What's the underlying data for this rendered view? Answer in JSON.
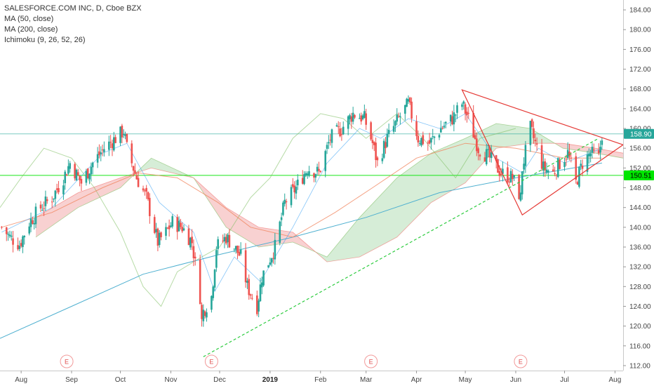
{
  "legend": {
    "title": "SALESFORCE.COM INC, D, Cboe BZX",
    "ma50": "MA (50, close)",
    "ma200": "MA (200, close)",
    "ichimoku": "Ichimoku (9, 26, 52, 26)"
  },
  "price_tags": [
    {
      "label": "158.90",
      "value": 158.9,
      "bg": "#26a69a",
      "fg": "#ffffff"
    },
    {
      "label": "150.51",
      "value": 150.51,
      "bg": "#00e600",
      "fg": "#000000"
    }
  ],
  "events": [
    {
      "label": "E",
      "date": "2018-08-29"
    },
    {
      "label": "E",
      "date": "2018-11-26"
    },
    {
      "label": "E",
      "date": "2019-03-04"
    },
    {
      "label": "E",
      "date": "2019-06-04"
    }
  ],
  "colors": {
    "up": "#26a69a",
    "down": "#ef5350",
    "ma50": "#f0825a",
    "ma200": "#4fb0d0",
    "conversion": "#2196f3",
    "lagging": "#7bbd5f",
    "cloud_bull": "#a5d6a7",
    "cloud_bear": "#ef9a9a",
    "triangle": "#e53935",
    "trendline": "#2ecc40"
  },
  "chart_data": {
    "type": "candlestick",
    "title": "SALESFORCE.COM INC, D, Cboe BZX",
    "x_tick_labels": [
      "Aug",
      "Sep",
      "Oct",
      "Nov",
      "Dec",
      "2019",
      "Feb",
      "Mar",
      "Apr",
      "May",
      "Jun",
      "Jul",
      "Aug"
    ],
    "x_tick_dates": [
      "2018-08-01",
      "2018-09-01",
      "2018-10-01",
      "2018-11-01",
      "2018-12-01",
      "2019-01-01",
      "2019-02-01",
      "2019-03-01",
      "2019-04-01",
      "2019-05-01",
      "2019-06-01",
      "2019-07-01",
      "2019-08-01"
    ],
    "y_tick_labels": [
      "112.00",
      "116.00",
      "120.00",
      "124.00",
      "128.00",
      "132.00",
      "136.00",
      "140.00",
      "144.00",
      "148.00",
      "152.00",
      "156.00",
      "160.00",
      "164.00",
      "168.00",
      "172.00",
      "176.00",
      "180.00",
      "184.00"
    ],
    "ylim": [
      111,
      186
    ],
    "xlim": [
      "2018-07-19",
      "2019-08-06"
    ],
    "close_path": [
      [
        "2018-07-20",
        140
      ],
      [
        "2018-07-25",
        138
      ],
      [
        "2018-07-31",
        136.5
      ],
      [
        "2018-08-06",
        141
      ],
      [
        "2018-08-13",
        144
      ],
      [
        "2018-08-20",
        146
      ],
      [
        "2018-08-27",
        150
      ],
      [
        "2018-08-31",
        153
      ],
      [
        "2018-09-07",
        149
      ],
      [
        "2018-09-14",
        153
      ],
      [
        "2018-09-21",
        156
      ],
      [
        "2018-09-28",
        158
      ],
      [
        "2018-10-03",
        159.5
      ],
      [
        "2018-10-05",
        156
      ],
      [
        "2018-10-11",
        150
      ],
      [
        "2018-10-17",
        146
      ],
      [
        "2018-10-24",
        137
      ],
      [
        "2018-10-29",
        139
      ],
      [
        "2018-11-02",
        141
      ],
      [
        "2018-11-08",
        140
      ],
      [
        "2018-11-14",
        137
      ],
      [
        "2018-11-19",
        126
      ],
      [
        "2018-11-20",
        121
      ],
      [
        "2018-11-21",
        123
      ],
      [
        "2018-11-26",
        126
      ],
      [
        "2018-11-29",
        136
      ],
      [
        "2018-12-05",
        138
      ],
      [
        "2018-12-10",
        136
      ],
      [
        "2018-12-14",
        134
      ],
      [
        "2018-12-18",
        128
      ],
      [
        "2018-12-24",
        124
      ],
      [
        "2018-12-27",
        130
      ],
      [
        "2019-01-04",
        136
      ],
      [
        "2019-01-10",
        145
      ],
      [
        "2019-01-17",
        148
      ],
      [
        "2019-01-24",
        152
      ],
      [
        "2019-01-31",
        151
      ],
      [
        "2019-02-07",
        158
      ],
      [
        "2019-02-14",
        160
      ],
      [
        "2019-02-21",
        163
      ],
      [
        "2019-02-28",
        162
      ],
      [
        "2019-03-05",
        157
      ],
      [
        "2019-03-08",
        153
      ],
      [
        "2019-03-14",
        158
      ],
      [
        "2019-03-21",
        162
      ],
      [
        "2019-03-27",
        165
      ],
      [
        "2019-04-02",
        158
      ],
      [
        "2019-04-09",
        157
      ],
      [
        "2019-04-16",
        160
      ],
      [
        "2019-04-23",
        162
      ],
      [
        "2019-04-29",
        165
      ],
      [
        "2019-05-03",
        162
      ],
      [
        "2019-05-09",
        156
      ],
      [
        "2019-05-16",
        154
      ],
      [
        "2019-05-23",
        151
      ],
      [
        "2019-05-30",
        150
      ],
      [
        "2019-06-04",
        146
      ],
      [
        "2019-06-05",
        152
      ],
      [
        "2019-06-10",
        160
      ],
      [
        "2019-06-13",
        157
      ],
      [
        "2019-06-18",
        152
      ],
      [
        "2019-06-24",
        151
      ],
      [
        "2019-06-28",
        153
      ],
      [
        "2019-07-03",
        155
      ],
      [
        "2019-07-08",
        149
      ],
      [
        "2019-07-12",
        153
      ],
      [
        "2019-07-17",
        155
      ],
      [
        "2019-07-22",
        154
      ],
      [
        "2019-07-24",
        158.9
      ]
    ],
    "ma50": [
      [
        "2018-07-20",
        140
      ],
      [
        "2018-08-20",
        143
      ],
      [
        "2018-09-20",
        148
      ],
      [
        "2018-10-12",
        151
      ],
      [
        "2018-11-05",
        150
      ],
      [
        "2018-11-30",
        145
      ],
      [
        "2018-12-20",
        140
      ],
      [
        "2019-01-15",
        138
      ],
      [
        "2019-02-10",
        143
      ],
      [
        "2019-03-05",
        148
      ],
      [
        "2019-04-01",
        154
      ],
      [
        "2019-05-01",
        157
      ],
      [
        "2019-06-01",
        156
      ],
      [
        "2019-07-01",
        154
      ],
      [
        "2019-07-24",
        154
      ]
    ],
    "ma200": [
      [
        "2018-07-19",
        117.5
      ],
      [
        "2018-09-01",
        124
      ],
      [
        "2018-10-15",
        130.5
      ],
      [
        "2018-12-01",
        134.5
      ],
      [
        "2019-01-15",
        138
      ],
      [
        "2019-03-01",
        142
      ],
      [
        "2019-04-15",
        147
      ],
      [
        "2019-06-01",
        150
      ],
      [
        "2019-07-24",
        153
      ]
    ],
    "ichimoku_cloud": {
      "senkou_a": [
        [
          "2018-08-10",
          138
        ],
        [
          "2018-09-05",
          144
        ],
        [
          "2018-10-01",
          148
        ],
        [
          "2018-10-20",
          154
        ],
        [
          "2018-11-15",
          150
        ],
        [
          "2018-12-05",
          140
        ],
        [
          "2018-12-25",
          136
        ],
        [
          "2019-01-15",
          137
        ],
        [
          "2019-02-05",
          134
        ],
        [
          "2019-02-25",
          142
        ],
        [
          "2019-03-20",
          150
        ],
        [
          "2019-04-10",
          155
        ],
        [
          "2019-05-01",
          158
        ],
        [
          "2019-05-20",
          161
        ],
        [
          "2019-06-10",
          160
        ],
        [
          "2019-06-30",
          156
        ],
        [
          "2019-07-20",
          155
        ],
        [
          "2019-08-06",
          154
        ]
      ],
      "senkou_b": [
        [
          "2018-08-10",
          142
        ],
        [
          "2018-09-05",
          147
        ],
        [
          "2018-10-01",
          150
        ],
        [
          "2018-10-20",
          152
        ],
        [
          "2018-11-15",
          150
        ],
        [
          "2018-12-05",
          144
        ],
        [
          "2018-12-25",
          140
        ],
        [
          "2019-01-15",
          139
        ],
        [
          "2019-02-05",
          133
        ],
        [
          "2019-02-25",
          134
        ],
        [
          "2019-03-20",
          138
        ],
        [
          "2019-04-10",
          145
        ],
        [
          "2019-05-01",
          149
        ],
        [
          "2019-05-20",
          156
        ],
        [
          "2019-06-10",
          157
        ],
        [
          "2019-06-30",
          157
        ],
        [
          "2019-07-20",
          156
        ],
        [
          "2019-08-06",
          155
        ]
      ]
    },
    "conversion_line": [
      [
        "2018-07-20",
        139
      ],
      [
        "2018-08-20",
        144
      ],
      [
        "2018-09-20",
        155
      ],
      [
        "2018-10-05",
        157
      ],
      [
        "2018-10-25",
        145
      ],
      [
        "2018-11-15",
        139
      ],
      [
        "2018-11-28",
        127
      ],
      [
        "2018-12-10",
        134
      ],
      [
        "2018-12-26",
        129
      ],
      [
        "2019-01-15",
        140
      ],
      [
        "2019-02-05",
        153
      ],
      [
        "2019-02-25",
        160
      ],
      [
        "2019-03-10",
        158
      ],
      [
        "2019-03-27",
        162
      ],
      [
        "2019-04-15",
        160
      ],
      [
        "2019-05-01",
        163
      ],
      [
        "2019-05-20",
        154
      ],
      [
        "2019-06-05",
        151
      ],
      [
        "2019-06-15",
        156
      ],
      [
        "2019-07-01",
        153
      ],
      [
        "2019-07-24",
        156
      ]
    ],
    "lagging_span": [
      [
        "2018-07-19",
        144
      ],
      [
        "2018-08-01",
        150
      ],
      [
        "2018-08-15",
        156
      ],
      [
        "2018-09-01",
        154
      ],
      [
        "2018-09-15",
        148
      ],
      [
        "2018-10-01",
        139
      ],
      [
        "2018-10-15",
        128
      ],
      [
        "2018-10-26",
        124
      ],
      [
        "2018-11-05",
        131
      ],
      [
        "2018-11-20",
        134
      ],
      [
        "2018-12-01",
        136
      ],
      [
        "2018-12-20",
        146
      ],
      [
        "2019-01-01",
        150
      ],
      [
        "2019-01-15",
        158
      ],
      [
        "2019-02-01",
        163
      ],
      [
        "2019-02-15",
        162
      ],
      [
        "2019-03-01",
        158
      ],
      [
        "2019-03-20",
        163
      ],
      [
        "2019-04-05",
        158
      ],
      [
        "2019-04-25",
        150
      ],
      [
        "2019-05-10",
        158
      ],
      [
        "2019-06-01",
        160
      ]
    ],
    "triangle": [
      [
        "2019-04-29",
        167.8
      ],
      [
        "2019-08-06",
        156.7
      ],
      [
        "2019-06-05",
        142.5
      ]
    ],
    "trendline": {
      "from": [
        "2018-11-21",
        113.8
      ],
      "to": [
        "2019-07-22",
        158
      ]
    },
    "horizontal_lines": [
      158.9,
      150.51
    ]
  }
}
